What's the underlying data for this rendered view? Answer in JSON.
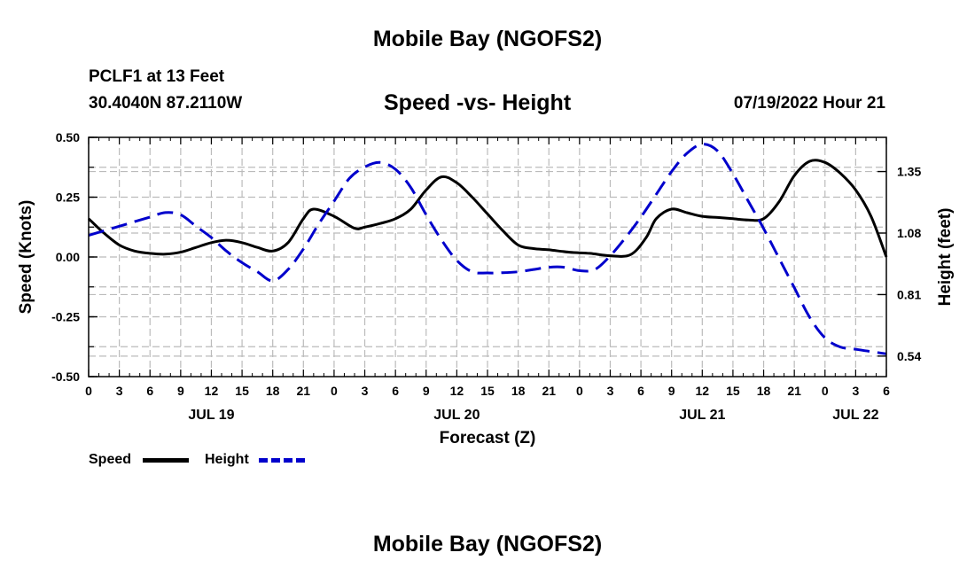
{
  "chart_data": {
    "type": "line",
    "title": "Mobile Bay (NGOFS2)",
    "station": "PCLF1 at 13 Feet",
    "coordinates": "30.4040N  87.2110W",
    "subtitle": "Speed -vs- Height",
    "datetime": "07/19/2022 Hour 21",
    "footer_title": "Mobile Bay (NGOFS2)",
    "xlabel": "Forecast (Z)",
    "ylabel": "Speed (Knots)",
    "y2label": "Height (feet)",
    "xlim": [
      0,
      78
    ],
    "ylim": [
      -0.5,
      0.5
    ],
    "y2lim": [
      0.45,
      1.5
    ],
    "x_ticks": [
      0,
      3,
      6,
      9,
      12,
      15,
      18,
      21,
      24,
      27,
      30,
      33,
      36,
      39,
      42,
      45,
      48,
      51,
      54,
      57,
      60,
      63,
      66,
      69,
      72,
      75,
      78
    ],
    "x_tick_labels": [
      "0",
      "3",
      "6",
      "9",
      "12",
      "15",
      "18",
      "21",
      "0",
      "3",
      "6",
      "9",
      "12",
      "15",
      "18",
      "21",
      "0",
      "3",
      "6",
      "9",
      "12",
      "15",
      "18",
      "21",
      "0",
      "3",
      "6"
    ],
    "day_labels": [
      {
        "x": 12,
        "label": "JUL 19"
      },
      {
        "x": 36,
        "label": "JUL 20"
      },
      {
        "x": 60,
        "label": "JUL 21"
      },
      {
        "x": 75,
        "label": "JUL 22"
      }
    ],
    "y_ticks": [
      -0.5,
      -0.25,
      0.0,
      0.25,
      0.5
    ],
    "y_tick_labels": [
      "-0.50",
      "-0.25",
      "0.00",
      "0.25",
      "0.50"
    ],
    "y2_ticks": [
      0.54,
      0.81,
      1.08,
      1.35
    ],
    "y2_tick_labels": [
      "0.54",
      "0.81",
      "1.08",
      "1.35"
    ],
    "grid": true,
    "legend_position": "bottom-left",
    "series": [
      {
        "name": "Speed",
        "axis": "left",
        "color": "#000000",
        "style": "solid",
        "x": [
          0,
          1.5,
          3,
          4.5,
          6,
          7.5,
          9,
          10.5,
          12,
          13.5,
          15,
          16.5,
          18,
          19.5,
          21,
          22,
          24,
          26,
          27,
          28.5,
          30,
          31.5,
          33,
          34.5,
          36,
          37.5,
          39,
          40.5,
          42,
          43.5,
          45,
          47,
          49,
          51,
          53,
          54.5,
          55.5,
          57,
          58.5,
          60,
          61.5,
          63,
          64.5,
          66,
          67.5,
          69,
          70.5,
          72,
          73.5,
          75,
          76.5,
          78
        ],
        "values": [
          0.16,
          0.1,
          0.05,
          0.025,
          0.015,
          0.012,
          0.02,
          0.04,
          0.06,
          0.07,
          0.06,
          0.04,
          0.025,
          0.06,
          0.16,
          0.2,
          0.17,
          0.12,
          0.125,
          0.14,
          0.16,
          0.2,
          0.28,
          0.335,
          0.31,
          0.25,
          0.18,
          0.11,
          0.05,
          0.035,
          0.03,
          0.02,
          0.015,
          0.005,
          0.01,
          0.08,
          0.16,
          0.2,
          0.185,
          0.17,
          0.165,
          0.16,
          0.155,
          0.16,
          0.23,
          0.34,
          0.4,
          0.395,
          0.35,
          0.28,
          0.17,
          0.0
        ]
      },
      {
        "name": "Height",
        "axis": "right",
        "color": "#0000cc",
        "style": "dashed",
        "x": [
          0,
          1.5,
          3,
          4.5,
          6,
          7.5,
          9,
          10.5,
          12,
          13.5,
          15,
          16.5,
          18,
          19.5,
          21,
          22.5,
          24,
          25.5,
          27,
          28.5,
          30,
          31.5,
          33,
          34.5,
          36,
          37.5,
          39,
          40.5,
          42,
          43.5,
          45,
          46.5,
          48,
          49.5,
          51,
          52.5,
          54,
          55.5,
          57,
          58.5,
          60,
          61.5,
          63,
          64.5,
          66,
          67.5,
          69,
          70.5,
          72,
          73.5,
          75,
          76.5,
          78
        ],
        "values": [
          1.07,
          1.09,
          1.11,
          1.13,
          1.15,
          1.17,
          1.16,
          1.11,
          1.06,
          1.0,
          0.95,
          0.91,
          0.87,
          0.92,
          1.01,
          1.12,
          1.22,
          1.32,
          1.37,
          1.39,
          1.36,
          1.28,
          1.16,
          1.05,
          0.96,
          0.91,
          0.905,
          0.906,
          0.91,
          0.92,
          0.93,
          0.93,
          0.915,
          0.92,
          0.98,
          1.06,
          1.15,
          1.25,
          1.35,
          1.43,
          1.47,
          1.44,
          1.34,
          1.22,
          1.1,
          0.97,
          0.84,
          0.71,
          0.62,
          0.58,
          0.57,
          0.56,
          0.55
        ]
      }
    ],
    "legend": [
      {
        "label": "Speed"
      },
      {
        "label": "Height"
      }
    ]
  }
}
